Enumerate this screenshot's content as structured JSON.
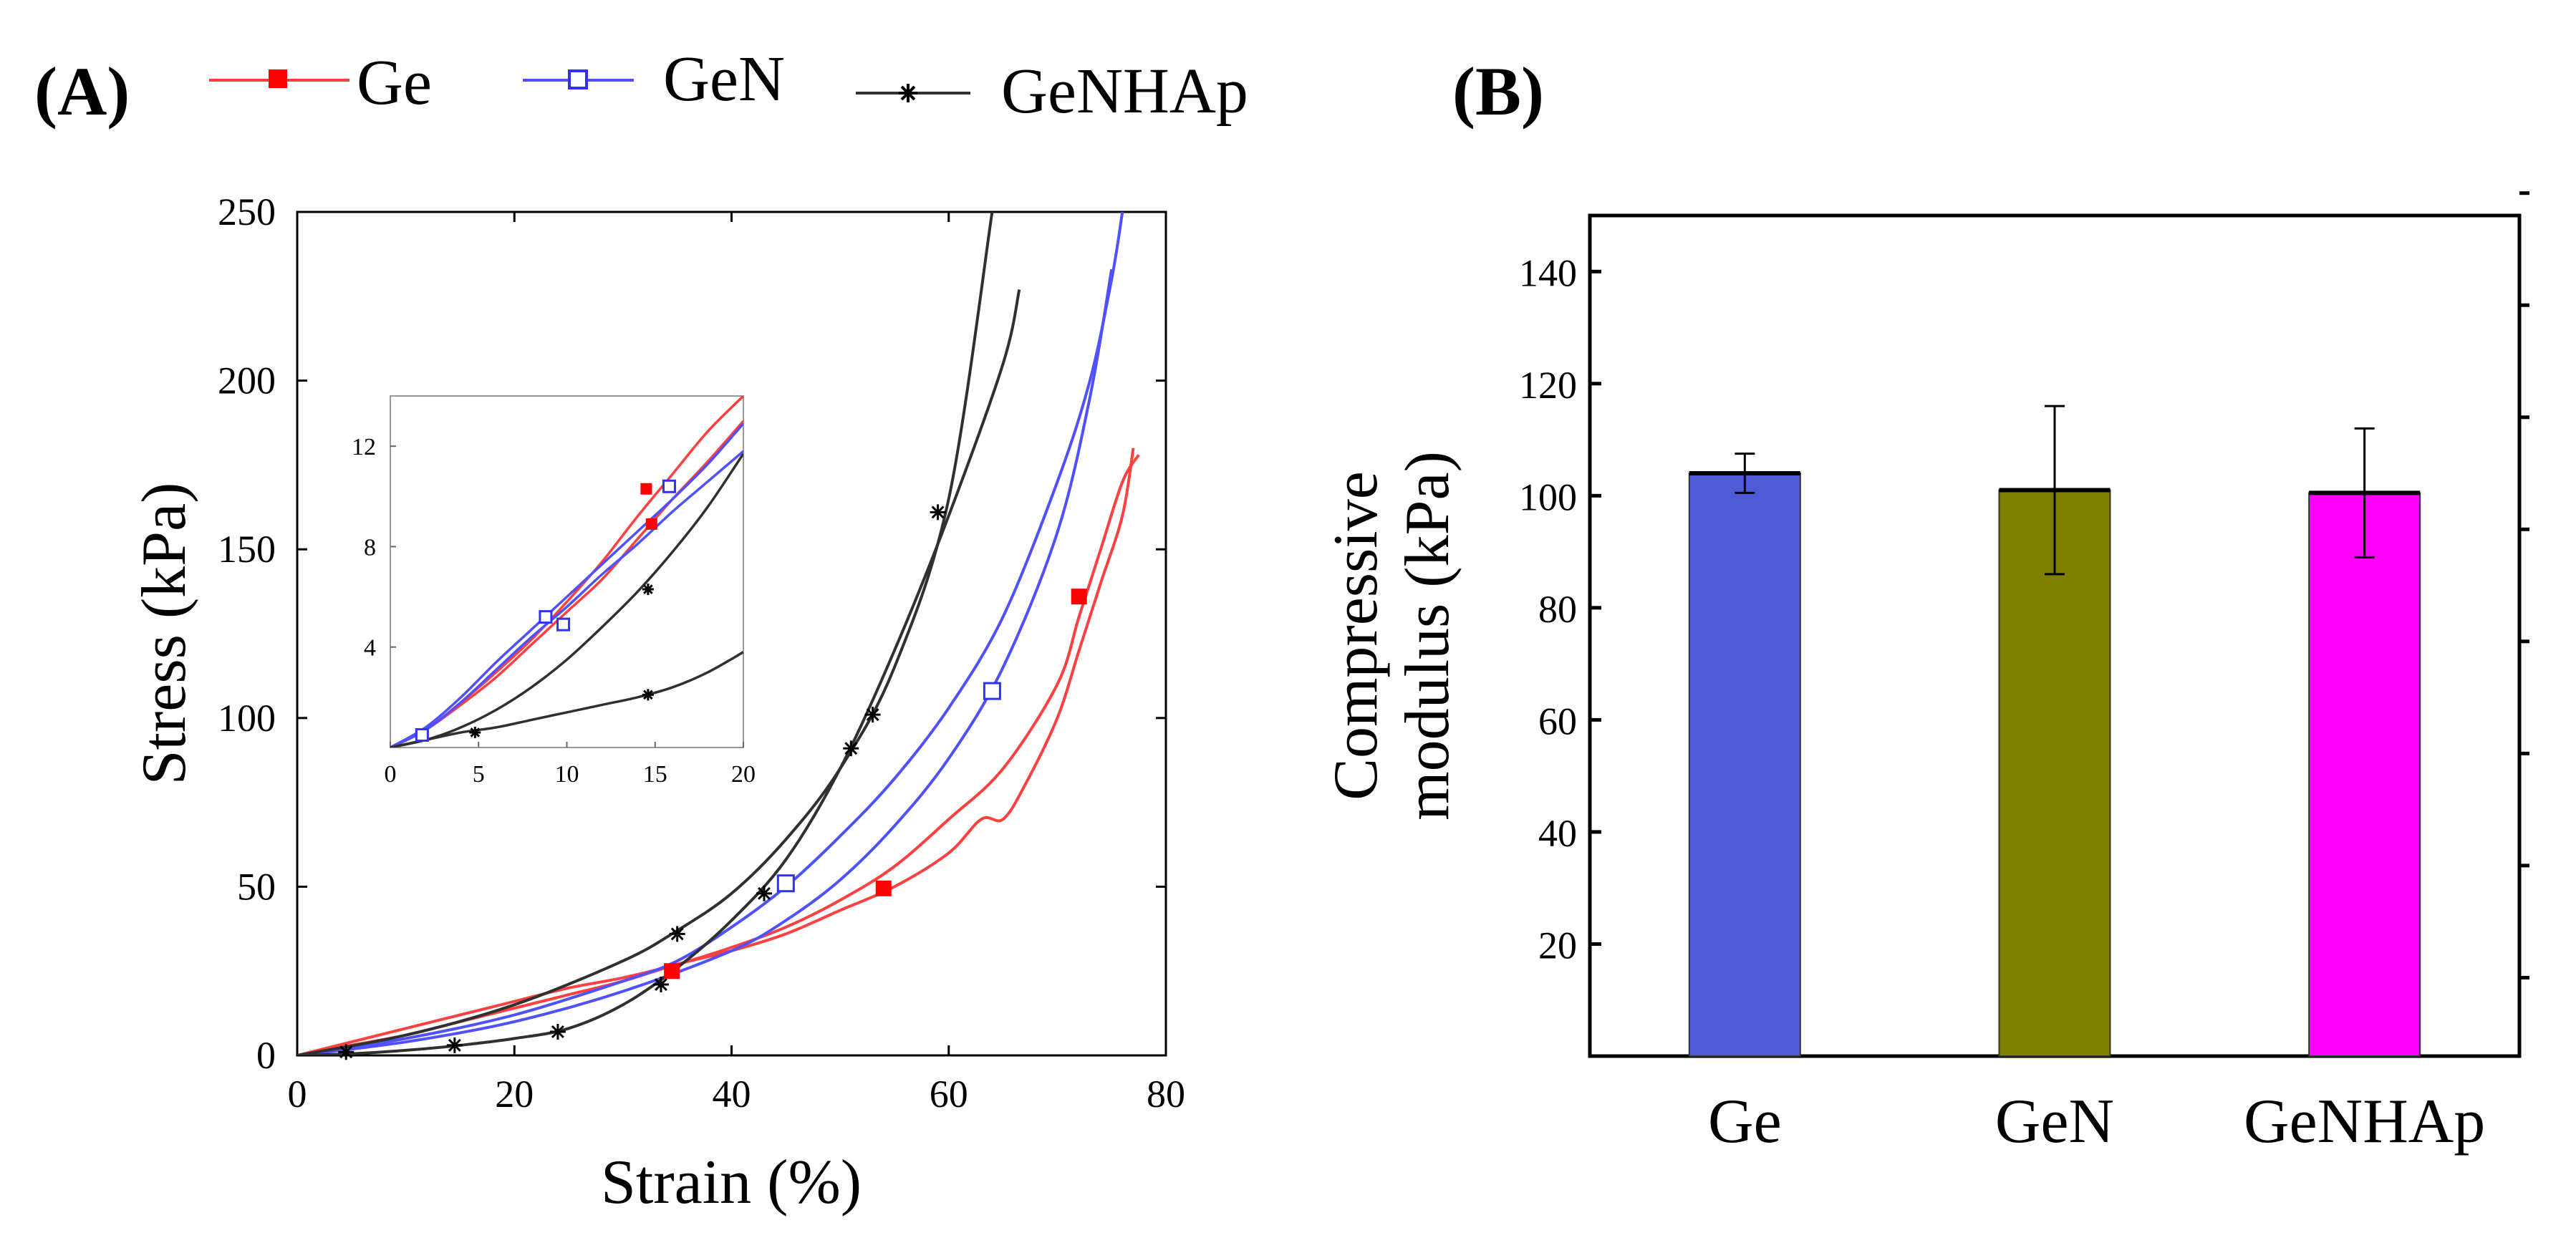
{
  "chart_data": [
    {
      "panel": "(A)",
      "type": "line",
      "xlabel": "Strain (%)",
      "ylabel": "Stress (kPa)",
      "xlim": [
        0,
        80
      ],
      "ylim": [
        0,
        250
      ],
      "xticks": [
        "0",
        "20",
        "40",
        "60",
        "80"
      ],
      "yticks": [
        "0",
        "50",
        "100",
        "150",
        "200",
        "250"
      ],
      "legend": {
        "placement": "top",
        "entries": [
          "Ge",
          "GeN",
          "GeNHAp"
        ]
      },
      "series": [
        {
          "name": "Ge",
          "color": "#ff4040",
          "marker": "filled-square",
          "curves": [
            {
              "x": [
                0,
                5,
                10,
                15,
                20,
                25,
                30,
                35,
                40,
                45,
                50,
                55,
                60,
                63,
                65,
                67,
                70,
                72,
                74,
                76,
                77
              ],
              "y": [
                0,
                3,
                6,
                10,
                14,
                18,
                22,
                27,
                31,
                36,
                43,
                50,
                60,
                70,
                70,
                80,
                100,
                120,
                140,
                160,
                180
              ]
            },
            {
              "x": [
                0,
                5,
                10,
                15,
                20,
                25,
                30,
                35,
                40,
                45,
                50,
                55,
                60,
                65,
                70,
                72,
                74,
                76,
                77.5
              ],
              "y": [
                0,
                4,
                8,
                12,
                16,
                20,
                23,
                27,
                32,
                38,
                46,
                56,
                70,
                85,
                110,
                130,
                150,
                170,
                178
              ]
            }
          ],
          "markers": [
            [
              34.5,
              25
            ],
            [
              54,
              49.5
            ],
            [
              72,
              136
            ]
          ]
        },
        {
          "name": "GeN",
          "color": "#5050ff",
          "marker": "open-square",
          "curves": [
            {
              "x": [
                0,
                10,
                20,
                30,
                35,
                40,
                45,
                50,
                55,
                60,
                65,
                70,
                73,
                75,
                76
              ],
              "y": [
                0,
                5,
                12,
                22,
                28,
                38,
                50,
                65,
                82,
                103,
                130,
                170,
                200,
                230,
                250
              ]
            },
            {
              "x": [
                0,
                10,
                20,
                30,
                40,
                45,
                50,
                55,
                60,
                65,
                70,
                73,
                75
              ],
              "y": [
                0,
                4,
                10,
                19,
                31,
                40,
                52,
                68,
                88,
                115,
                155,
                195,
                233
              ]
            }
          ],
          "markers": [
            [
              45,
              51
            ],
            [
              64,
              108
            ]
          ]
        },
        {
          "name": "GeNHAp",
          "color": "#303030",
          "marker": "asterisk",
          "curves": [
            {
              "x": [
                0,
                10,
                20,
                30,
                35,
                40,
                45,
                50,
                55,
                60,
                64
              ],
              "y": [
                0,
                6,
                15,
                28,
                37,
                48,
                64,
                85,
                115,
                165,
                250
              ]
            },
            {
              "x": [
                0,
                5,
                10,
                15,
                20,
                25,
                30,
                35,
                40,
                45,
                50,
                55,
                60,
                65,
                66.5
              ],
              "y": [
                0,
                0.5,
                1.5,
                3,
                5,
                8,
                15,
                26,
                40,
                58,
                85,
                120,
                160,
                205,
                227
              ]
            }
          ],
          "markers": [
            [
              4.5,
              1
            ],
            [
              14.5,
              3
            ],
            [
              24,
              7
            ],
            [
              33.5,
              21
            ],
            [
              35,
              36
            ],
            [
              43,
              48
            ],
            [
              51,
              91
            ],
            [
              53,
              101
            ],
            [
              59,
              161
            ]
          ]
        }
      ],
      "inset": {
        "xlim": [
          0,
          20
        ],
        "ylim": [
          0,
          14
        ],
        "xticks": [
          "0",
          "5",
          "10",
          "15",
          "20"
        ],
        "yticks": [
          "4",
          "8",
          "12"
        ],
        "series": [
          {
            "name": "Ge",
            "color": "#ff4040",
            "marker": "filled-square",
            "curves": [
              {
                "x": [
                  0,
                  2,
                  4,
                  6,
                  8,
                  10,
                  12,
                  14,
                  16,
                  18,
                  20
                ],
                "y": [
                  0,
                  0.7,
                  1.8,
                  3,
                  4.3,
                  5.8,
                  7.4,
                  9.2,
                  10.9,
                  12.6,
                  14
                ]
              },
              {
                "x": [
                  0,
                  2,
                  4,
                  6,
                  8,
                  10,
                  12,
                  14,
                  16,
                  18,
                  20
                ],
                "y": [
                  0,
                  0.7,
                  1.7,
                  2.8,
                  4.1,
                  5.4,
                  6.7,
                  8.3,
                  9.9,
                  11.4,
                  13
                ]
              }
            ],
            "markers": [
              [
                14.5,
                10.3
              ],
              [
                14.8,
                8.9
              ]
            ]
          },
          {
            "name": "GeN",
            "color": "#5050ff",
            "marker": "open-square",
            "curves": [
              {
                "x": [
                  0,
                  2,
                  4,
                  6,
                  8,
                  10,
                  12,
                  14,
                  16,
                  18,
                  20
                ],
                "y": [
                  0,
                  0.8,
                  2,
                  3.4,
                  4.7,
                  6,
                  7.3,
                  8.6,
                  9.9,
                  11.3,
                  12.9
                ]
              },
              {
                "x": [
                  0,
                  2,
                  4,
                  6,
                  8,
                  10,
                  12,
                  14,
                  16,
                  18,
                  20
                ],
                "y": [
                  0,
                  0.7,
                  1.8,
                  3.1,
                  4.4,
                  5.6,
                  6.9,
                  8.1,
                  9.4,
                  10.6,
                  11.8
                ]
              }
            ],
            "markers": [
              [
                1.8,
                0.5
              ],
              [
                8.8,
                5.2
              ],
              [
                9.8,
                4.9
              ],
              [
                15.8,
                10.4
              ]
            ]
          },
          {
            "name": "GeNHAp",
            "color": "#303030",
            "marker": "asterisk",
            "curves": [
              {
                "x": [
                  0,
                  2,
                  4,
                  6,
                  8,
                  10,
                  12,
                  14,
                  16,
                  18,
                  20
                ],
                "y": [
                  0,
                  0.3,
                  0.8,
                  1.5,
                  2.4,
                  3.5,
                  4.8,
                  6.2,
                  7.8,
                  9.6,
                  11.7
                ]
              },
              {
                "x": [
                  0,
                  2,
                  4,
                  6,
                  8,
                  10,
                  12,
                  14,
                  16,
                  18,
                  20
                ],
                "y": [
                  0,
                  0.3,
                  0.6,
                  0.8,
                  1.1,
                  1.4,
                  1.7,
                  2,
                  2.4,
                  3,
                  3.8
                ]
              }
            ],
            "markers": [
              [
                4.8,
                0.6
              ],
              [
                14.6,
                2.1
              ],
              [
                14.6,
                6.3
              ]
            ]
          }
        ]
      }
    },
    {
      "panel": "(B)",
      "type": "bar",
      "ylabel_line1": "Compressive",
      "ylabel_line2": "modulus (kPa)",
      "ylim": [
        0,
        150
      ],
      "yticks": [
        "20",
        "40",
        "60",
        "80",
        "100",
        "120",
        "140"
      ],
      "categories": [
        "Ge",
        "GeN",
        "GeNHAp"
      ],
      "values": [
        104,
        101,
        100.5
      ],
      "errors": [
        3.5,
        15,
        11.5
      ],
      "colors": [
        "#4f5ad6",
        "#808000",
        "#ff00ff"
      ]
    }
  ]
}
